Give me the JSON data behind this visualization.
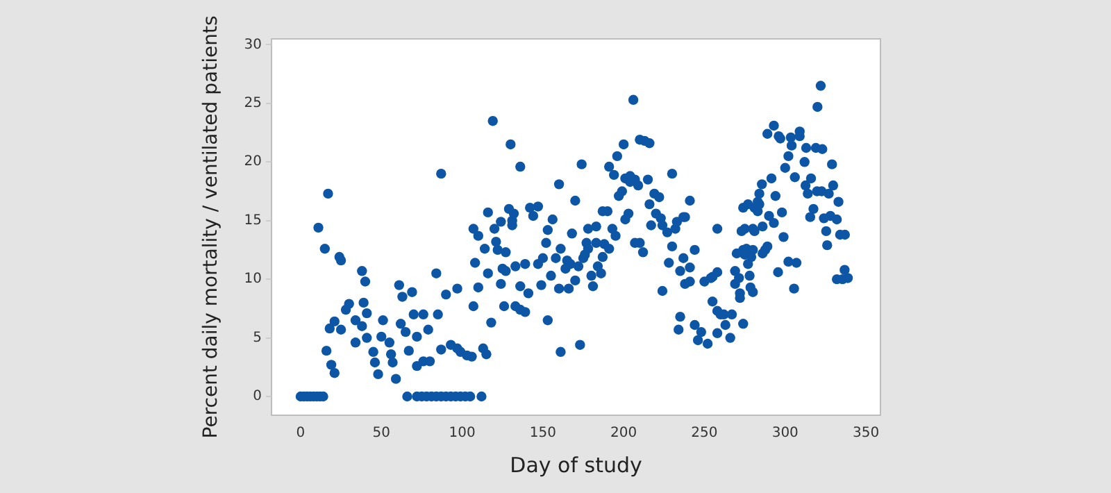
{
  "chart_data": {
    "type": "scatter",
    "xlabel": "Day of study",
    "ylabel": "Percent daily mortality / ventilated patients",
    "xlim": [
      -18,
      359
    ],
    "ylim": [
      -1.6,
      30.5
    ],
    "xticks": [
      0,
      50,
      100,
      150,
      200,
      250,
      300,
      350
    ],
    "yticks": [
      0,
      5,
      10,
      15,
      20,
      25,
      30
    ],
    "grid": false,
    "legend": false,
    "marker": "circle",
    "series": [
      {
        "color": "#0d56a6",
        "x": [
          0,
          2,
          4,
          6,
          8,
          10,
          12,
          14,
          11,
          17,
          15,
          24,
          25,
          16,
          19,
          21,
          18,
          21,
          25,
          28,
          30,
          34,
          34,
          38,
          40,
          39,
          41,
          38,
          41,
          45,
          46,
          48,
          51,
          50,
          55,
          56,
          57,
          59,
          61,
          63,
          62,
          65,
          67,
          69,
          70,
          72,
          72,
          76,
          79,
          84,
          85,
          87,
          90,
          97,
          76,
          80,
          87,
          93,
          97,
          99,
          103,
          106,
          66,
          72,
          75,
          78,
          81,
          84,
          87,
          90,
          93,
          96,
          99,
          102,
          105,
          112,
          113,
          115,
          107,
          108,
          110,
          107,
          110,
          114,
          116,
          118,
          116,
          119,
          130,
          120,
          121,
          122,
          124,
          124,
          125,
          126,
          127,
          127,
          129,
          131,
          133,
          133,
          136,
          132,
          131,
          139,
          136,
          141,
          136,
          139,
          142,
          144,
          147,
          147,
          150,
          149,
          152,
          153,
          156,
          153,
          155,
          158,
          160,
          160,
          161,
          161,
          164,
          165,
          166,
          168,
          170,
          167,
          170,
          173,
          174,
          172,
          175,
          176,
          177,
          178,
          178,
          180,
          181,
          183,
          183,
          184,
          186,
          187,
          187,
          190,
          188,
          191,
          191,
          194,
          193,
          195,
          196,
          200,
          197,
          199,
          201,
          203,
          201,
          204,
          206,
          204,
          207,
          209,
          207,
          210,
          212,
          210,
          213,
          216,
          215,
          216,
          219,
          222,
          217,
          220,
          223,
          224,
          227,
          228,
          230,
          230,
          232,
          233,
          237,
          238,
          241,
          224,
          237,
          235,
          238,
          241,
          241,
          244,
          235,
          234,
          244,
          246,
          248,
          250,
          252,
          254,
          255,
          255,
          258,
          260,
          258,
          258,
          262,
          258,
          263,
          266,
          267,
          269,
          269,
          272,
          274,
          274,
          275,
          277,
          278,
          280,
          281,
          284,
          280,
          322,
          320,
          293,
          289,
          296,
          297,
          303.5,
          309,
          309,
          304,
          313,
          319,
          323,
          302,
          312,
          329,
          300,
          306,
          291.5,
          285.6,
          312.6,
          316,
          329.7,
          284,
          294,
          314,
          319.7,
          322.6,
          327,
          283,
          333,
          274,
          277,
          283,
          298,
          317.5,
          290,
          315.5,
          293,
          324,
          328,
          332,
          286,
          273,
          275,
          281,
          325.4,
          334,
          337,
          299,
          326,
          270,
          276,
          280,
          279,
          287.6,
          289,
          286,
          302,
          307,
          295.6,
          305.5,
          271.4,
          278.5,
          272,
          336.8,
          332,
          335.5,
          338.8
        ],
        "values": [
          0,
          0,
          0,
          0,
          0,
          0,
          0,
          0,
          14.4,
          17.3,
          12.6,
          11.9,
          11.6,
          3.9,
          2.7,
          2.0,
          5.8,
          6.4,
          5.7,
          7.4,
          7.9,
          6.5,
          4.6,
          10.7,
          9.8,
          8.0,
          7.1,
          6.0,
          5.0,
          3.8,
          2.9,
          1.9,
          6.5,
          5.1,
          4.6,
          3.6,
          2.9,
          1.5,
          9.5,
          8.5,
          6.2,
          5.5,
          3.9,
          8.9,
          7.0,
          5.1,
          2.6,
          7.0,
          5.7,
          10.5,
          7.0,
          19.0,
          8.7,
          9.2,
          3.0,
          3.0,
          4.0,
          4.4,
          4.1,
          3.8,
          3.5,
          3.4,
          0,
          0,
          0,
          0,
          0,
          0,
          0,
          0,
          0,
          0,
          0,
          0,
          0,
          0,
          4.1,
          3.6,
          7.7,
          11.4,
          9.3,
          14.3,
          13.7,
          12.6,
          15.7,
          6.3,
          10.5,
          23.5,
          21.5,
          14.3,
          13.2,
          12.5,
          14.9,
          9.6,
          10.9,
          7.7,
          10.7,
          12.3,
          16.0,
          14.6,
          11.1,
          7.7,
          19.6,
          15.6,
          15.0,
          11.3,
          9.4,
          8.8,
          7.4,
          7.2,
          16.1,
          15.4,
          16.2,
          11.3,
          11.8,
          9.5,
          13.1,
          14.2,
          15.1,
          6.5,
          10.3,
          11.8,
          9.2,
          18.1,
          12.6,
          3.8,
          10.9,
          11.6,
          9.2,
          13.9,
          16.7,
          11.3,
          9.9,
          4.4,
          19.8,
          11.1,
          11.8,
          12.1,
          13.1,
          12.6,
          14.3,
          10.3,
          9.4,
          13.1,
          14.5,
          11.1,
          10.5,
          11.9,
          15.8,
          15.8,
          13.0,
          12.6,
          19.6,
          18.9,
          14.3,
          13.7,
          20.5,
          21.5,
          17.1,
          17.5,
          15.1,
          15.6,
          18.6,
          18.8,
          25.3,
          18.3,
          18.5,
          18.0,
          13.1,
          13.1,
          12.3,
          21.9,
          21.8,
          21.6,
          18.5,
          16.4,
          17.3,
          17.0,
          14.6,
          15.6,
          15.2,
          14.6,
          14.0,
          11.4,
          12.8,
          19.0,
          14.3,
          14.9,
          15.3,
          15.3,
          16.7,
          9.0,
          11.8,
          10.7,
          9.6,
          9.8,
          11.0,
          12.5,
          6.8,
          5.7,
          6.1,
          4.8,
          5.5,
          9.8,
          4.5,
          10.1,
          8.1,
          10.2,
          7.3,
          7.0,
          14.3,
          10.6,
          7.0,
          5.4,
          6.1,
          5.0,
          7.0,
          10.7,
          9.6,
          8.4,
          12.5,
          6.2,
          12.1,
          11.3,
          10.3,
          14.3,
          16.1,
          16.4,
          8.9,
          26.5,
          24.7,
          23.1,
          22.4,
          22.2,
          22.0,
          22.1,
          22.6,
          22.2,
          21.4,
          21.2,
          21.2,
          21.1,
          20.5,
          20.0,
          19.8,
          19.5,
          18.7,
          18.6,
          18.1,
          18.0,
          18.6,
          18.0,
          17.3,
          17.1,
          17.3,
          17.5,
          17.5,
          17.3,
          16.6,
          16.6,
          16.1,
          16.4,
          15.8,
          15.7,
          16.0,
          15.4,
          15.3,
          14.8,
          15.2,
          15.4,
          15.1,
          14.5,
          14.1,
          14.3,
          14.1,
          14.1,
          13.8,
          13.8,
          13.6,
          12.9,
          12.2,
          12.6,
          12.5,
          11.9,
          12.5,
          12.8,
          12.2,
          11.5,
          11.4,
          10.6,
          9.2,
          10.1,
          9.3,
          8.8,
          10.8,
          10.0,
          10.0,
          10.1
        ]
      }
    ]
  }
}
